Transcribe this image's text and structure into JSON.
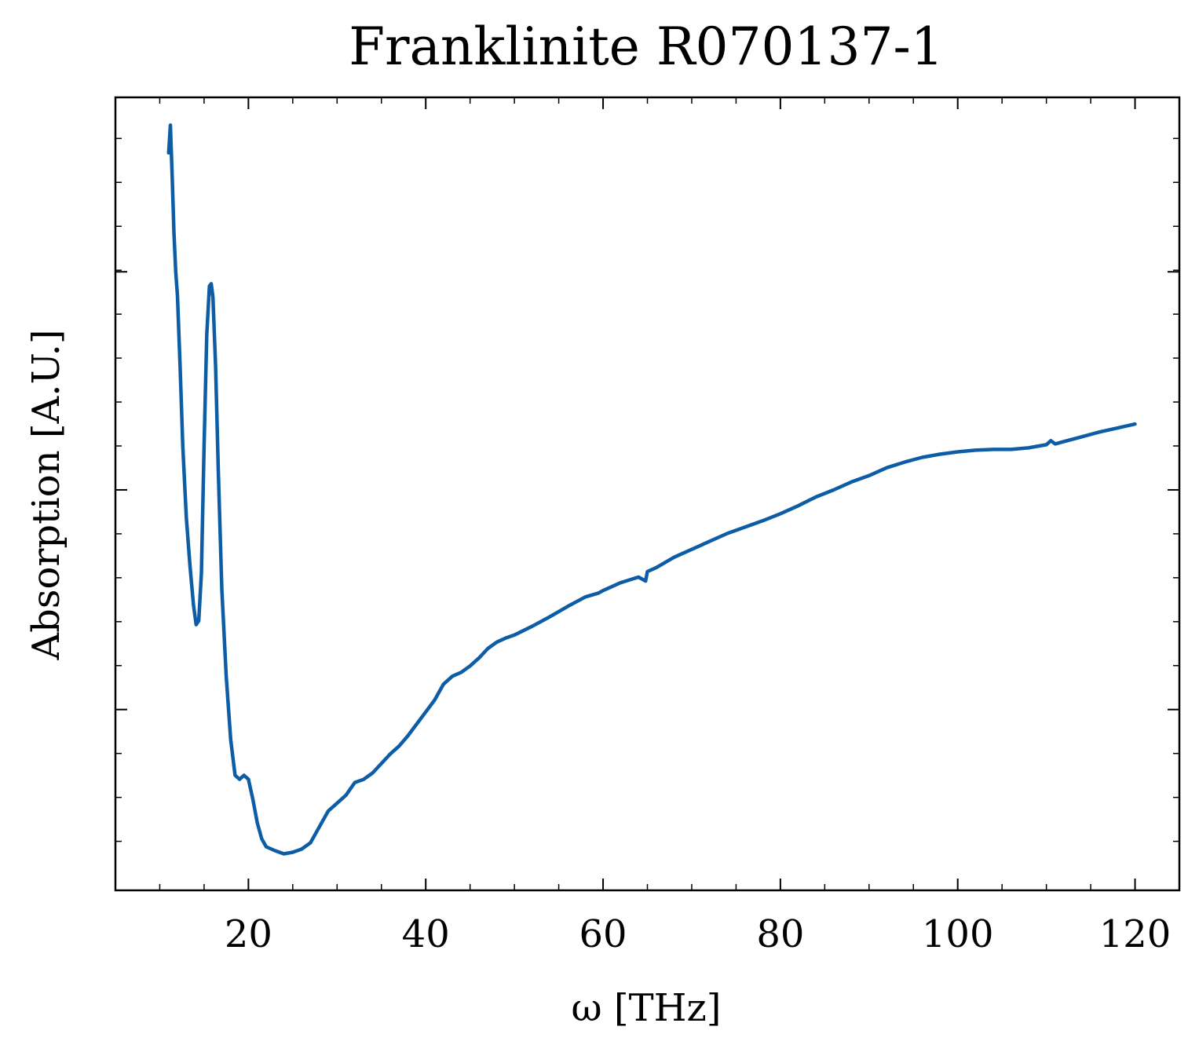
{
  "chart_data": {
    "type": "line",
    "title": "Franklinite R070137-1",
    "xlabel": "ω [THz]",
    "ylabel": "Absorption [A.U.]",
    "xlim": [
      5,
      125
    ],
    "ylim": [
      0.0,
      1.0
    ],
    "xticks": [
      20,
      40,
      60,
      80,
      100,
      120
    ],
    "xtick_labels": [
      "20",
      "40",
      "60",
      "80",
      "100",
      "120"
    ],
    "yticks_major": [
      0.228,
      0.505,
      0.78
    ],
    "ytick_labels_shown": false,
    "grid": false,
    "legend": "none",
    "series": [
      {
        "color": "#0c5da5",
        "x": [
          11.0,
          11.2,
          11.4,
          11.6,
          11.8,
          12.0,
          12.3,
          12.6,
          13.0,
          13.4,
          13.8,
          14.1,
          14.4,
          14.7,
          15.0,
          15.3,
          15.6,
          15.8,
          16.0,
          16.3,
          16.6,
          17.0,
          17.5,
          18.0,
          18.5,
          19.0,
          19.5,
          20.0,
          20.5,
          21.0,
          21.5,
          22.0,
          23.0,
          24.0,
          25.0,
          26.0,
          27.0,
          28.0,
          29.0,
          30.0,
          31.0,
          32.0,
          33.0,
          34.0,
          35.0,
          36.0,
          37.0,
          38.0,
          39.0,
          40.0,
          41.0,
          42.0,
          43.0,
          44.0,
          45.0,
          46.0,
          47.0,
          48.0,
          49.0,
          50.0,
          52.0,
          54.0,
          56.0,
          58.0,
          59.5,
          60.0,
          62.0,
          64.0,
          64.8,
          65.0,
          66.0,
          68.0,
          70.0,
          72.0,
          74.0,
          76.0,
          78.0,
          80.0,
          82.0,
          84.0,
          86.0,
          88.0,
          90.0,
          92.0,
          94.0,
          96.0,
          98.0,
          100.0,
          102.0,
          104.0,
          106.0,
          108.0,
          110.0,
          110.5,
          111.0,
          112.0,
          114.0,
          116.0,
          118.0,
          120.0
        ],
        "y": [
          0.93,
          0.965,
          0.9,
          0.83,
          0.78,
          0.75,
          0.66,
          0.56,
          0.47,
          0.41,
          0.36,
          0.335,
          0.34,
          0.4,
          0.56,
          0.7,
          0.762,
          0.765,
          0.748,
          0.66,
          0.53,
          0.38,
          0.27,
          0.19,
          0.145,
          0.14,
          0.145,
          0.14,
          0.115,
          0.085,
          0.065,
          0.055,
          0.05,
          0.046,
          0.048,
          0.052,
          0.06,
          0.08,
          0.1,
          0.11,
          0.12,
          0.136,
          0.14,
          0.148,
          0.16,
          0.172,
          0.182,
          0.195,
          0.21,
          0.225,
          0.24,
          0.26,
          0.27,
          0.275,
          0.283,
          0.293,
          0.305,
          0.313,
          0.318,
          0.322,
          0.333,
          0.345,
          0.358,
          0.37,
          0.375,
          0.378,
          0.388,
          0.395,
          0.39,
          0.402,
          0.407,
          0.42,
          0.43,
          0.44,
          0.45,
          0.458,
          0.466,
          0.475,
          0.485,
          0.496,
          0.505,
          0.515,
          0.523,
          0.533,
          0.54,
          0.546,
          0.55,
          0.553,
          0.555,
          0.556,
          0.556,
          0.558,
          0.562,
          0.567,
          0.563,
          0.566,
          0.572,
          0.578,
          0.583,
          0.588
        ]
      }
    ]
  }
}
